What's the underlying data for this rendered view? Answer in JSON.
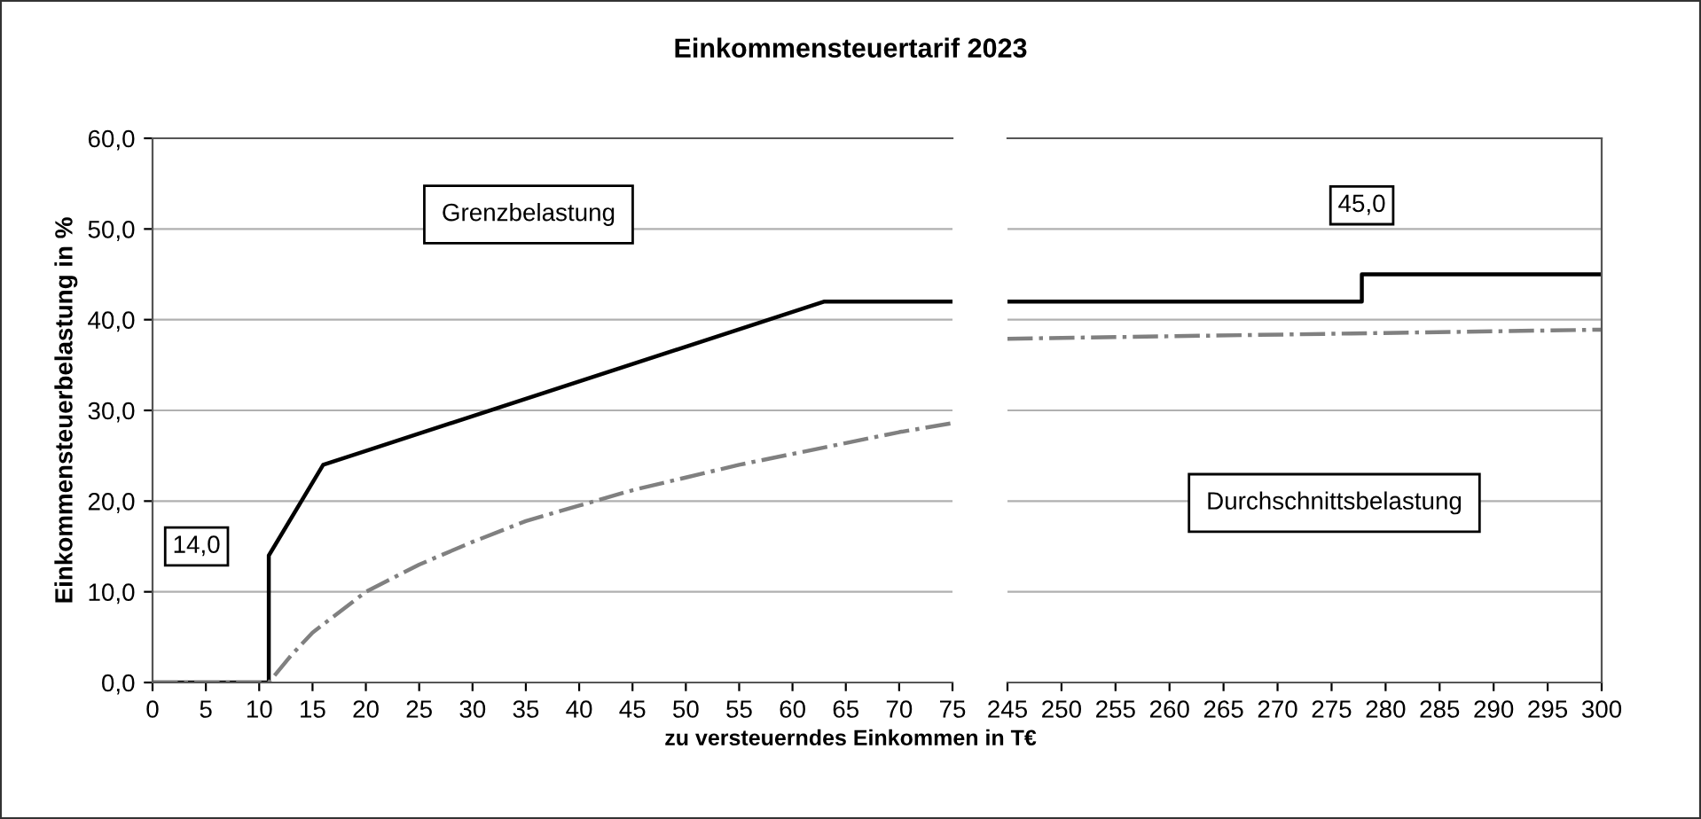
{
  "chart_data": [
    {
      "type": "line",
      "title": "Einkommensteuertarif 2023",
      "xlabel": "zu versteuerndes Einkommen in T€",
      "ylabel": "Einkommensteuerbelastung in %",
      "xlim": [
        0,
        75
      ],
      "xticks": [
        0,
        5,
        10,
        15,
        20,
        25,
        30,
        35,
        40,
        45,
        50,
        55,
        60,
        65,
        70,
        75
      ],
      "ylim": [
        0,
        60
      ],
      "yticks": [
        {
          "value": 0,
          "label": "0,0"
        },
        {
          "value": 10,
          "label": "10,0"
        },
        {
          "value": 20,
          "label": "20,0"
        },
        {
          "value": 30,
          "label": "30,0"
        },
        {
          "value": 40,
          "label": "40,0"
        },
        {
          "value": 50,
          "label": "50,0"
        },
        {
          "value": 60,
          "label": "60,0"
        }
      ],
      "grid": "y",
      "legend": false,
      "series": [
        {
          "name": "Grenzbelastung",
          "color": "#000000",
          "line_style": "solid",
          "x": [
            0,
            10.9,
            10.9,
            16,
            63,
            75
          ],
          "values": [
            0,
            0,
            14,
            24,
            42,
            42
          ]
        },
        {
          "color": "#808080",
          "line_style": "dashdot",
          "x": [
            0,
            10.9,
            13,
            15,
            20,
            25,
            30,
            35,
            40,
            45,
            50,
            55,
            60,
            65,
            70,
            75
          ],
          "values": [
            0,
            0,
            3,
            5.5,
            10,
            13,
            15.5,
            17.8,
            19.5,
            21.2,
            22.6,
            24,
            25.2,
            26.4,
            27.6,
            28.6
          ]
        }
      ],
      "annotations": [
        "14,0"
      ]
    },
    {
      "type": "line",
      "xlim": [
        245,
        300
      ],
      "xticks": [
        245,
        250,
        255,
        260,
        265,
        270,
        275,
        280,
        285,
        290,
        295,
        300
      ],
      "ylim": [
        0,
        60
      ],
      "yticks": [
        0,
        10,
        20,
        30,
        40,
        50,
        60
      ],
      "tick_labels": "x",
      "grid": "y",
      "legend": false,
      "series": [
        {
          "color": "#000000",
          "line_style": "solid",
          "x": [
            245,
            277.8,
            277.8,
            300
          ],
          "values": [
            42,
            42,
            45,
            45
          ]
        },
        {
          "name": "Durchschnittsbelastung",
          "color": "#808080",
          "line_style": "dashdot",
          "x": [
            245,
            300
          ],
          "values": [
            37.9,
            38.9
          ]
        }
      ],
      "annotations": [
        {
          "text": "45,0",
          "x": 277.8,
          "y": 45
        }
      ]
    }
  ]
}
